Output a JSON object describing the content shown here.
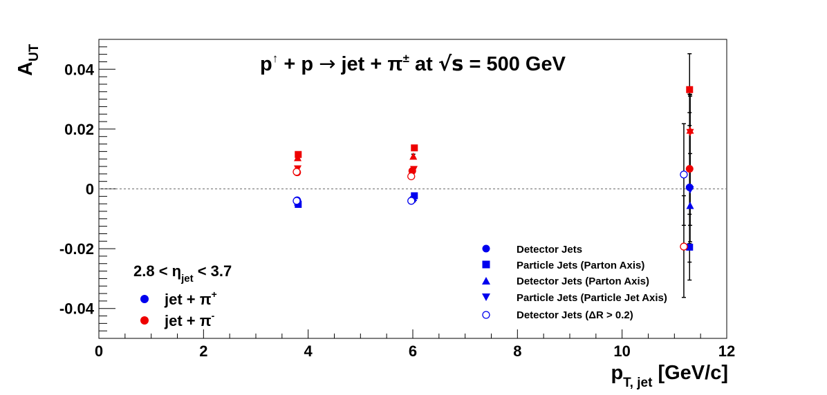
{
  "chart_data": {
    "type": "scatter",
    "title": {
      "p": "p",
      "up": "↑",
      "plus_p": " + p ",
      "arrow": "→",
      "jet_pi": " jet + π",
      "pm": "±",
      "at": " at ",
      "sqrt_s": "√s",
      "energy": " = 500 GeV"
    },
    "xlabel": {
      "main": "p",
      "sub": "T, jet",
      "unit": " [GeV/c]"
    },
    "ylabel": {
      "main": "A",
      "sub": "UT"
    },
    "xlim": [
      0,
      12
    ],
    "ylim": [
      -0.05,
      0.05
    ],
    "x_ticks": [
      "0",
      "2",
      "4",
      "6",
      "8",
      "10",
      "12"
    ],
    "y_ticks": [
      "-0.04",
      "-0.02",
      "0",
      "0.02",
      "0.04"
    ],
    "zero_line": true,
    "eta_cut": {
      "pre": "2.8 < η",
      "sub": "jet",
      "post": " < 3.7"
    },
    "charge_legend": [
      {
        "label": "jet + π",
        "sup": "+",
        "color": "#0000ee"
      },
      {
        "label": "jet + π",
        "sup": "-",
        "color": "#ee0000"
      }
    ],
    "marker_legend": [
      {
        "marker": "circle",
        "label": "Detector Jets"
      },
      {
        "marker": "square",
        "label": "Particle Jets (Parton Axis)"
      },
      {
        "marker": "triangle-up",
        "label": "Detector Jets (Parton Axis)"
      },
      {
        "marker": "triangle-down",
        "label": "Particle Jets (Particle Jet Axis)"
      },
      {
        "marker": "open-circle",
        "label": "Detector Jets (ΔR > 0.2)"
      }
    ],
    "series": [
      {
        "name": "Detector Jets",
        "marker": "circle",
        "charge": "+",
        "x": [
          3.79,
          5.99,
          11.29
        ],
        "y": [
          -0.0038,
          -0.0037,
          0.0005
        ],
        "err": [
          0.0006,
          0.0008,
          0.025
        ]
      },
      {
        "name": "Particle Jets (Parton Axis)",
        "marker": "square",
        "charge": "+",
        "x": [
          3.81,
          6.03,
          11.29
        ],
        "y": [
          -0.0052,
          -0.0023,
          -0.0195
        ],
        "err": [
          0.0006,
          0.0008,
          0.011
        ]
      },
      {
        "name": "Detector Jets (Parton Axis)",
        "marker": "triangle-up",
        "charge": "+",
        "x": [
          3.8,
          6.01,
          11.3
        ],
        "y": [
          -0.0045,
          -0.003,
          -0.0057
        ],
        "err": [
          0.0006,
          0.0008,
          0.012
        ]
      },
      {
        "name": "Particle Jets (Particle Jet Axis)",
        "marker": "triangle-down",
        "charge": "+",
        "x": [
          3.8,
          6.02,
          11.3
        ],
        "y": [
          -0.0048,
          -0.0035,
          -0.0002
        ],
        "err": [
          0.0006,
          0.0008,
          0.012
        ]
      },
      {
        "name": "Detector Jets (ΔR > 0.2)",
        "marker": "open-circle",
        "charge": "+",
        "x": [
          3.78,
          5.97,
          11.18
        ],
        "y": [
          -0.004,
          -0.004,
          0.0048
        ],
        "err": [
          0.0006,
          0.0008,
          0.017
        ]
      },
      {
        "name": "Detector Jets",
        "marker": "circle",
        "charge": "-",
        "x": [
          3.79,
          5.99,
          11.29
        ],
        "y": [
          0.0055,
          0.006,
          0.0067
        ],
        "err": [
          0.0006,
          0.0008,
          0.025
        ]
      },
      {
        "name": "Particle Jets (Parton Axis)",
        "marker": "square",
        "charge": "-",
        "x": [
          3.81,
          6.03,
          11.29
        ],
        "y": [
          0.0115,
          0.0137,
          0.0332
        ],
        "err": [
          0.0006,
          0.0008,
          0.012
        ]
      },
      {
        "name": "Detector Jets (Parton Axis)",
        "marker": "triangle-up",
        "charge": "-",
        "x": [
          3.8,
          6.01,
          11.3
        ],
        "y": [
          0.0103,
          0.0108,
          0.0195
        ],
        "err": [
          0.0006,
          0.0008,
          0.012
        ]
      },
      {
        "name": "Particle Jets (Particle Jet Axis)",
        "marker": "triangle-down",
        "charge": "-",
        "x": [
          3.8,
          6.02,
          11.3
        ],
        "y": [
          0.0068,
          0.0066,
          0.019
        ],
        "err": [
          0.0006,
          0.0008,
          0.012
        ]
      },
      {
        "name": "Detector Jets (ΔR > 0.2)",
        "marker": "open-circle",
        "charge": "-",
        "x": [
          3.78,
          5.97,
          11.18
        ],
        "y": [
          0.0057,
          0.0042,
          -0.0193
        ],
        "err": [
          0.0006,
          0.0008,
          0.017
        ]
      }
    ],
    "colors": {
      "positive": "#0000ee",
      "negative": "#ee0000",
      "errorbar": "#000000",
      "axis": "#000000",
      "zero_line": "#808080"
    }
  }
}
